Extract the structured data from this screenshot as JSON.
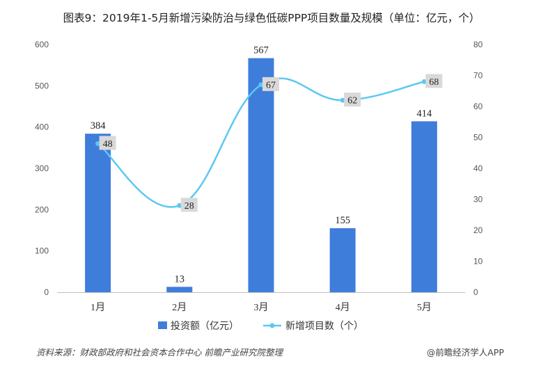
{
  "page": {
    "title": "图表9：2019年1-5月新增污染防治与绿色低碳PPP项目数量及规模（单位：亿元，个）",
    "source": "资料来源：财政部政府和社会资本合作中心 前瞻产业研究院整理",
    "brand": "@前瞻经济学人APP"
  },
  "chart_data": {
    "type": "bar",
    "categories": [
      "1月",
      "2月",
      "3月",
      "4月",
      "5月"
    ],
    "series": [
      {
        "name": "投资额（亿元）",
        "kind": "bar",
        "axis": "left",
        "values": [
          384,
          13,
          567,
          155,
          414
        ],
        "color": "#3f7ddb"
      },
      {
        "name": "新增项目数（个）",
        "kind": "line",
        "axis": "right",
        "smooth": true,
        "values": [
          48,
          28,
          67,
          62,
          68
        ],
        "color": "#5cc8f2"
      }
    ],
    "left_axis": {
      "ylim": [
        0,
        600
      ],
      "ticks": [
        0,
        100,
        200,
        300,
        400,
        500,
        600
      ]
    },
    "right_axis": {
      "ylim": [
        0,
        80
      ],
      "ticks": [
        0,
        10,
        20,
        30,
        40,
        50,
        60,
        70,
        80
      ]
    },
    "legend": "bottom",
    "grid": false
  }
}
